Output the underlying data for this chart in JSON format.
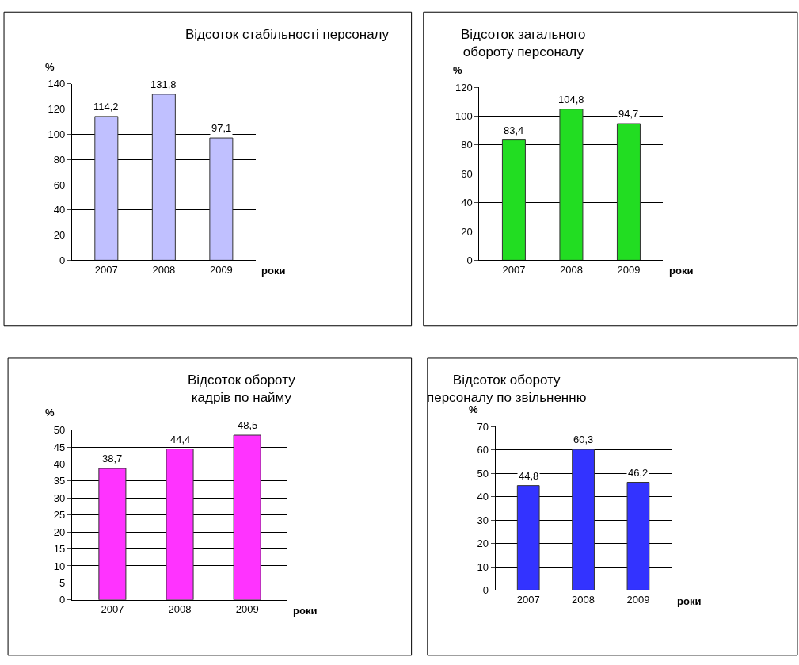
{
  "chart_data": [
    {
      "type": "bar",
      "title": "Відсоток стабільності персоналу",
      "xlabel": "роки",
      "ylabel": "%",
      "categories": [
        "2007",
        "2008",
        "2009"
      ],
      "values": [
        114.2,
        131.8,
        97.1
      ],
      "value_labels": [
        "114,2",
        "131,8",
        "97,1"
      ],
      "color": "#c0c0ff",
      "ylim": [
        0,
        140
      ],
      "yticks": [
        0,
        20,
        40,
        60,
        80,
        100,
        120,
        140
      ],
      "grid": "y"
    },
    {
      "type": "bar",
      "title": "Відсоток загального\nобороту персоналу",
      "xlabel": "роки",
      "ylabel": "%",
      "categories": [
        "2007",
        "2008",
        "2009"
      ],
      "values": [
        83.4,
        104.8,
        94.7
      ],
      "value_labels": [
        "83,4",
        "104,8",
        "94,7"
      ],
      "color": "#22dd22",
      "ylim": [
        0,
        120
      ],
      "yticks": [
        0,
        20,
        40,
        60,
        80,
        100,
        120
      ],
      "grid": "y"
    },
    {
      "type": "bar",
      "title": "Відсоток обороту\nкадрів по найму",
      "xlabel": "роки",
      "ylabel": "%",
      "categories": [
        "2007",
        "2008",
        "2009"
      ],
      "values": [
        38.7,
        44.4,
        48.5
      ],
      "value_labels": [
        "38,7",
        "44,4",
        "48,5"
      ],
      "color": "#ff33ff",
      "ylim": [
        0,
        50
      ],
      "yticks": [
        0,
        5,
        10,
        15,
        20,
        25,
        30,
        35,
        40,
        45,
        50
      ],
      "grid": "y"
    },
    {
      "type": "bar",
      "title": "Відсоток обороту\nперсоналу по звільненню",
      "xlabel": "роки",
      "ylabel": "%",
      "categories": [
        "2007",
        "2008",
        "2009"
      ],
      "values": [
        44.8,
        60.3,
        46.2
      ],
      "value_labels": [
        "44,8",
        "60,3",
        "46,2"
      ],
      "color": "#3333ff",
      "ylim": [
        0,
        70
      ],
      "yticks": [
        0,
        10,
        20,
        30,
        40,
        50,
        60,
        70
      ],
      "grid": "y"
    }
  ]
}
